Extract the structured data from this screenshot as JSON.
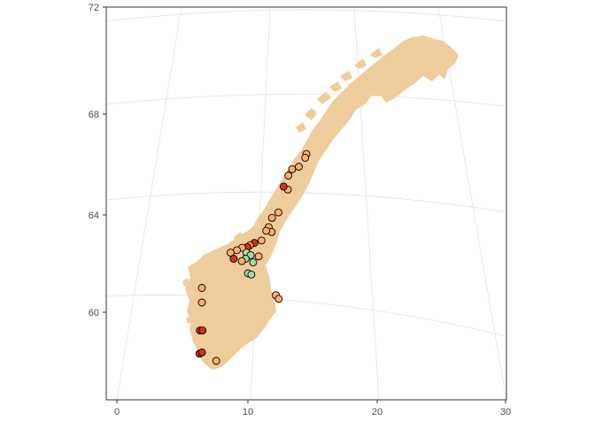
{
  "map": {
    "x_axis": {
      "ticks": [
        "0",
        "10",
        "20",
        "30"
      ]
    },
    "y_axis": {
      "ticks": [
        "72",
        "68",
        "64",
        "60"
      ]
    },
    "colors": {
      "land": "#EFCC9C",
      "grid": "#E3E3E3",
      "axis_text": "#4D4D4D",
      "panel_border": "#333333",
      "point_orange": "#FDAE6B",
      "point_red": "#D7301F",
      "point_green": "#A6DBA0"
    },
    "points": [
      {
        "lon": 15.2,
        "lat": 66.4,
        "cat": "orange"
      },
      {
        "lon": 15.1,
        "lat": 66.25,
        "cat": "orange"
      },
      {
        "lon": 14.6,
        "lat": 65.9,
        "cat": "orange"
      },
      {
        "lon": 14.1,
        "lat": 65.8,
        "cat": "orange"
      },
      {
        "lon": 13.8,
        "lat": 65.55,
        "cat": "orange"
      },
      {
        "lon": 13.7,
        "lat": 65.0,
        "cat": "orange"
      },
      {
        "lon": 13.4,
        "lat": 65.12,
        "cat": "red"
      },
      {
        "lon": 12.9,
        "lat": 64.1,
        "cat": "orange"
      },
      {
        "lon": 12.4,
        "lat": 63.88,
        "cat": "orange"
      },
      {
        "lon": 12.1,
        "lat": 63.5,
        "cat": "orange"
      },
      {
        "lon": 12.3,
        "lat": 63.3,
        "cat": "orange"
      },
      {
        "lon": 11.9,
        "lat": 63.35,
        "cat": "orange"
      },
      {
        "lon": 11.5,
        "lat": 62.95,
        "cat": "orange"
      },
      {
        "lon": 10.95,
        "lat": 62.85,
        "cat": "red"
      },
      {
        "lon": 10.6,
        "lat": 62.75,
        "cat": "orange"
      },
      {
        "lon": 10.4,
        "lat": 62.68,
        "cat": "red"
      },
      {
        "lon": 10.0,
        "lat": 62.65,
        "cat": "orange"
      },
      {
        "lon": 9.6,
        "lat": 62.55,
        "cat": "orange"
      },
      {
        "lon": 9.1,
        "lat": 62.45,
        "cat": "orange"
      },
      {
        "lon": 10.3,
        "lat": 62.45,
        "cat": "green"
      },
      {
        "lon": 10.6,
        "lat": 62.35,
        "cat": "green"
      },
      {
        "lon": 10.2,
        "lat": 62.2,
        "cat": "green"
      },
      {
        "lon": 10.75,
        "lat": 62.05,
        "cat": "green"
      },
      {
        "lon": 11.2,
        "lat": 62.3,
        "cat": "orange"
      },
      {
        "lon": 9.3,
        "lat": 62.2,
        "cat": "red"
      },
      {
        "lon": 9.9,
        "lat": 62.1,
        "cat": "orange"
      },
      {
        "lon": 10.3,
        "lat": 61.6,
        "cat": "green"
      },
      {
        "lon": 10.55,
        "lat": 61.55,
        "cat": "green"
      },
      {
        "lon": 12.3,
        "lat": 60.7,
        "cat": "orange"
      },
      {
        "lon": 12.5,
        "lat": 60.55,
        "cat": "orange"
      },
      {
        "lon": 6.7,
        "lat": 61.0,
        "cat": "orange"
      },
      {
        "lon": 6.6,
        "lat": 60.4,
        "cat": "orange"
      },
      {
        "lon": 6.25,
        "lat": 59.25,
        "cat": "red"
      },
      {
        "lon": 6.45,
        "lat": 59.25,
        "cat": "red"
      },
      {
        "lon": 6.05,
        "lat": 58.3,
        "cat": "red"
      },
      {
        "lon": 6.25,
        "lat": 58.35,
        "cat": "red"
      },
      {
        "lon": 7.3,
        "lat": 58.0,
        "cat": "orange"
      }
    ]
  }
}
